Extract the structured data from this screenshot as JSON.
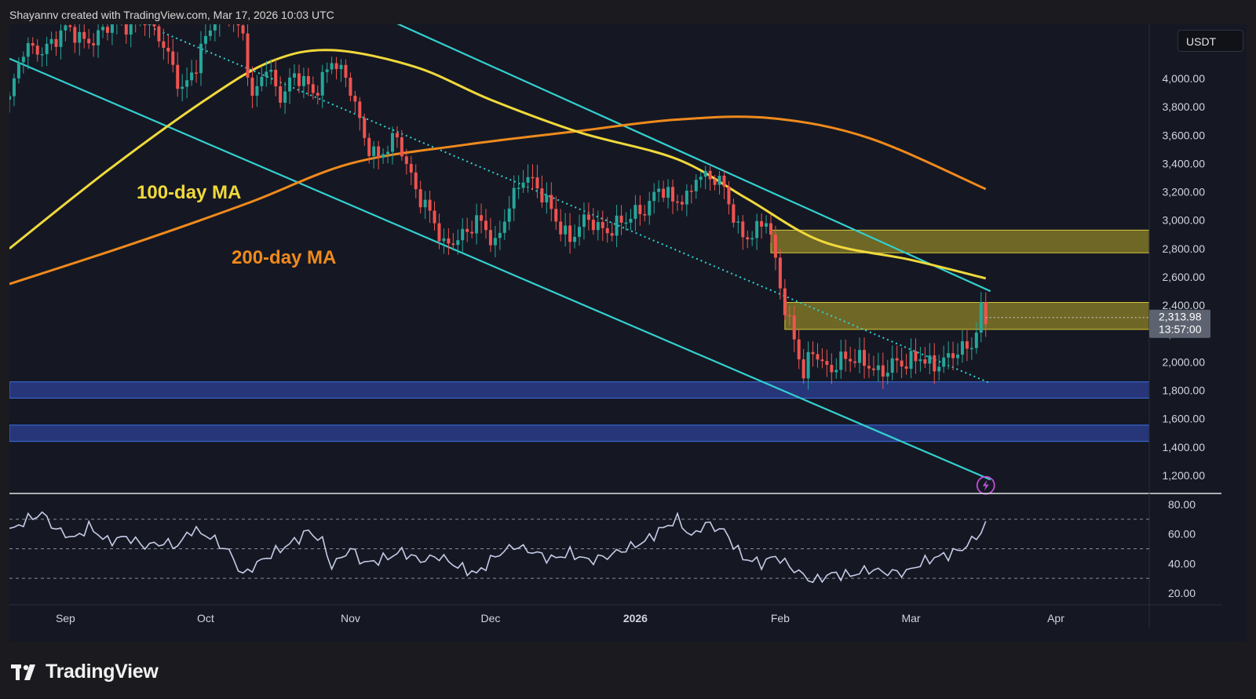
{
  "attribution": "Shayannv created with TradingView.com, Mar 17, 2026 10:03 UTC",
  "brand": "TradingView",
  "colors": {
    "background": "#151823",
    "bull": "#26a69a",
    "bear": "#ef5350",
    "ma100": "#f0d93c",
    "ma200": "#f08a1c",
    "channel": "#33d1d1",
    "supply_zone": "#8c8228",
    "demand_zone": "#2a3f8f",
    "rsi": "#c5cbe6"
  },
  "chart_data": [
    {
      "type": "candlestick",
      "title": "",
      "currency": "USDT",
      "y_ticks": [
        "4,000.00",
        "3,800.00",
        "3,600.00",
        "3,400.00",
        "3,200.00",
        "3,000.00",
        "2,800.00",
        "2,600.00",
        "2,400.00",
        "2,200.00",
        "2,000.00",
        "1,800.00",
        "1,600.00",
        "1,400.00",
        "1,200.00"
      ],
      "ylim": [
        1100,
        4300
      ],
      "x_ticks": [
        "Sep",
        "Oct",
        "Nov",
        "Dec",
        "2026",
        "Feb",
        "Mar",
        "Apr"
      ],
      "last_price": "2,313.98",
      "countdown": "13:57:00",
      "annotations": [
        "100-day MA",
        "200-day MA"
      ],
      "close_path": [
        [
          "2025-08-20",
          3850
        ],
        [
          "2025-08-23",
          4180
        ],
        [
          "2025-08-27",
          4230
        ],
        [
          "2025-09-01",
          4320
        ],
        [
          "2025-09-05",
          4280
        ],
        [
          "2025-09-10",
          4350
        ],
        [
          "2025-09-14",
          4380
        ],
        [
          "2025-09-18",
          4450
        ],
        [
          "2025-09-22",
          4200
        ],
        [
          "2025-09-26",
          3950
        ],
        [
          "2025-09-29",
          4100
        ],
        [
          "2025-10-03",
          4400
        ],
        [
          "2025-10-06",
          4500
        ],
        [
          "2025-10-09",
          4300
        ],
        [
          "2025-10-11",
          3800
        ],
        [
          "2025-10-14",
          4100
        ],
        [
          "2025-10-17",
          3900
        ],
        [
          "2025-10-20",
          4000
        ],
        [
          "2025-10-24",
          3900
        ],
        [
          "2025-10-28",
          4150
        ],
        [
          "2025-11-01",
          3900
        ],
        [
          "2025-11-04",
          3600
        ],
        [
          "2025-11-07",
          3450
        ],
        [
          "2025-11-11",
          3550
        ],
        [
          "2025-11-15",
          3250
        ],
        [
          "2025-11-18",
          3050
        ],
        [
          "2025-11-21",
          2780
        ],
        [
          "2025-11-24",
          2900
        ],
        [
          "2025-11-28",
          3000
        ],
        [
          "2025-12-02",
          2800
        ],
        [
          "2025-12-05",
          3150
        ],
        [
          "2025-12-08",
          3300
        ],
        [
          "2025-12-11",
          3200
        ],
        [
          "2025-12-14",
          3100
        ],
        [
          "2025-12-18",
          2850
        ],
        [
          "2025-12-22",
          3000
        ],
        [
          "2025-12-26",
          2950
        ],
        [
          "2025-12-30",
          2970
        ],
        [
          "2026-01-03",
          3100
        ],
        [
          "2026-01-06",
          3250
        ],
        [
          "2026-01-09",
          3100
        ],
        [
          "2026-01-12",
          3150
        ],
        [
          "2026-01-14",
          3350
        ],
        [
          "2026-01-17",
          3300
        ],
        [
          "2026-01-20",
          3200
        ],
        [
          "2026-01-23",
          2950
        ],
        [
          "2026-01-26",
          2900
        ],
        [
          "2026-01-29",
          2980
        ],
        [
          "2026-01-31",
          2700
        ],
        [
          "2026-02-02",
          2400
        ],
        [
          "2026-02-04",
          2200
        ],
        [
          "2026-02-06",
          1900
        ],
        [
          "2026-02-08",
          2050
        ],
        [
          "2026-02-11",
          1950
        ],
        [
          "2026-02-14",
          2050
        ],
        [
          "2026-02-18",
          1980
        ],
        [
          "2026-02-22",
          1950
        ],
        [
          "2026-02-25",
          2000
        ],
        [
          "2026-02-28",
          1950
        ],
        [
          "2026-03-03",
          2050
        ],
        [
          "2026-03-06",
          2000
        ],
        [
          "2026-03-09",
          2000
        ],
        [
          "2026-03-12",
          2080
        ],
        [
          "2026-03-14",
          2150
        ],
        [
          "2026-03-16",
          2380
        ],
        [
          "2026-03-17",
          2314
        ]
      ],
      "ma100": [
        [
          "2025-08-20",
          2800
        ],
        [
          "2025-09-10",
          3350
        ],
        [
          "2025-10-01",
          3850
        ],
        [
          "2025-10-15",
          4120
        ],
        [
          "2025-10-28",
          4200
        ],
        [
          "2025-11-15",
          4080
        ],
        [
          "2025-12-01",
          3850
        ],
        [
          "2025-12-20",
          3620
        ],
        [
          "2026-01-10",
          3430
        ],
        [
          "2026-01-25",
          3150
        ],
        [
          "2026-02-10",
          2850
        ],
        [
          "2026-03-01",
          2720
        ],
        [
          "2026-03-17",
          2590
        ]
      ],
      "ma200": [
        [
          "2025-08-20",
          2550
        ],
        [
          "2025-09-15",
          2830
        ],
        [
          "2025-10-10",
          3120
        ],
        [
          "2025-11-01",
          3400
        ],
        [
          "2025-11-25",
          3530
        ],
        [
          "2025-12-20",
          3630
        ],
        [
          "2026-01-10",
          3710
        ],
        [
          "2026-01-30",
          3720
        ],
        [
          "2026-02-20",
          3580
        ],
        [
          "2026-03-17",
          3220
        ]
      ],
      "trendlines": [
        {
          "style": "solid",
          "points": [
            [
              "2025-08-20",
              4140
            ],
            [
              "2026-03-18",
              1170
            ]
          ]
        },
        {
          "style": "solid",
          "points": [
            [
              "2025-10-29",
              4580
            ],
            [
              "2026-03-18",
              2500
            ]
          ]
        },
        {
          "style": "dotted",
          "points": [
            [
              "2025-09-20",
              4350
            ],
            [
              "2026-03-18",
              1850
            ]
          ]
        }
      ],
      "zones": [
        {
          "kind": "supply",
          "from": "2026-01-30",
          "y_low": 2770,
          "y_high": 2930
        },
        {
          "kind": "supply",
          "from": "2026-02-02",
          "y_low": 2230,
          "y_high": 2420
        },
        {
          "kind": "demand",
          "from": "2025-08-20",
          "y_low": 1745,
          "y_high": 1860
        },
        {
          "kind": "demand",
          "from": "2025-08-20",
          "y_low": 1440,
          "y_high": 1555
        }
      ]
    },
    {
      "type": "line",
      "title": "",
      "y_ticks": [
        "80.00",
        "60.00",
        "40.00",
        "20.00"
      ],
      "ylim": [
        12,
        87
      ],
      "levels": [
        70,
        50,
        30
      ],
      "values": [
        [
          "2025-08-20",
          62
        ],
        [
          "2025-08-24",
          70
        ],
        [
          "2025-08-27",
          74
        ],
        [
          "2025-08-30",
          63
        ],
        [
          "2025-09-03",
          57
        ],
        [
          "2025-09-06",
          65
        ],
        [
          "2025-09-10",
          55
        ],
        [
          "2025-09-14",
          58
        ],
        [
          "2025-09-18",
          52
        ],
        [
          "2025-09-22",
          54
        ],
        [
          "2025-09-25",
          52
        ],
        [
          "2025-09-28",
          63
        ],
        [
          "2025-10-02",
          58
        ],
        [
          "2025-10-06",
          48
        ],
        [
          "2025-10-09",
          32
        ],
        [
          "2025-10-12",
          40
        ],
        [
          "2025-10-16",
          48
        ],
        [
          "2025-10-20",
          55
        ],
        [
          "2025-10-23",
          62
        ],
        [
          "2025-10-26",
          55
        ],
        [
          "2025-10-28",
          38
        ],
        [
          "2025-11-01",
          50
        ],
        [
          "2025-11-04",
          40
        ],
        [
          "2025-11-08",
          43
        ],
        [
          "2025-11-12",
          48
        ],
        [
          "2025-11-16",
          42
        ],
        [
          "2025-11-20",
          45
        ],
        [
          "2025-11-24",
          38
        ],
        [
          "2025-11-28",
          33
        ],
        [
          "2025-12-02",
          45
        ],
        [
          "2025-12-06",
          52
        ],
        [
          "2025-12-10",
          48
        ],
        [
          "2025-12-14",
          43
        ],
        [
          "2025-12-18",
          47
        ],
        [
          "2025-12-22",
          42
        ],
        [
          "2025-12-26",
          45
        ],
        [
          "2025-12-30",
          50
        ],
        [
          "2026-01-03",
          55
        ],
        [
          "2026-01-06",
          62
        ],
        [
          "2026-01-10",
          70
        ],
        [
          "2026-01-13",
          58
        ],
        [
          "2026-01-16",
          67
        ],
        [
          "2026-01-20",
          62
        ],
        [
          "2026-01-24",
          44
        ],
        [
          "2026-01-28",
          40
        ],
        [
          "2026-01-31",
          45
        ],
        [
          "2026-02-04",
          36
        ],
        [
          "2026-02-08",
          28
        ],
        [
          "2026-02-12",
          33
        ],
        [
          "2026-02-16",
          32
        ],
        [
          "2026-02-20",
          36
        ],
        [
          "2026-02-24",
          34
        ],
        [
          "2026-02-28",
          34
        ],
        [
          "2026-03-03",
          40
        ],
        [
          "2026-03-06",
          44
        ],
        [
          "2026-03-09",
          46
        ],
        [
          "2026-03-12",
          50
        ],
        [
          "2026-03-15",
          58
        ],
        [
          "2026-03-17",
          66
        ]
      ]
    }
  ]
}
